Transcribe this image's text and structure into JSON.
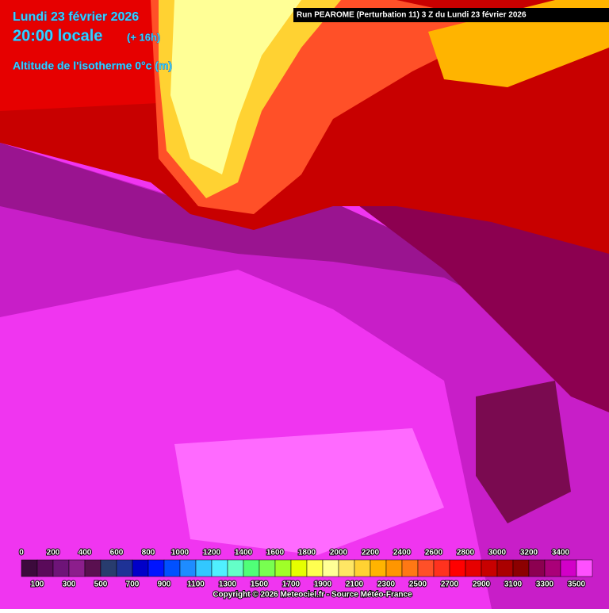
{
  "header": {
    "date": "Lundi 23 février 2026",
    "time": "20:00 locale",
    "lead": "(+ 16h)",
    "field": "Altitude de l'isotherme 0°c (m)",
    "run": "Run PEAROME (Perturbation 11) 3 Z du Lundi 23 février 2026"
  },
  "legend": {
    "values": [
      0,
      100,
      200,
      300,
      400,
      500,
      600,
      700,
      800,
      900,
      1000,
      1100,
      1200,
      1300,
      1400,
      1500,
      1600,
      1700,
      1800,
      1900,
      2000,
      2100,
      2200,
      2300,
      2400,
      2500,
      2600,
      2700,
      2800,
      2900,
      3000,
      3100,
      3200,
      3300,
      3400,
      3500
    ],
    "colors": [
      "#3c0a3c",
      "#5a0a5a",
      "#6e1478",
      "#8c1e8c",
      "#5a1050",
      "#283c6e",
      "#1e3296",
      "#0000c8",
      "#0014ff",
      "#0050ff",
      "#1e8cff",
      "#32c8ff",
      "#50f0ff",
      "#64ffc8",
      "#50ff78",
      "#78ff50",
      "#a0ff28",
      "#e6ff00",
      "#ffff50",
      "#ffff96",
      "#ffe664",
      "#ffd232",
      "#ffb400",
      "#ff9600",
      "#ff7814",
      "#ff5028",
      "#ff321e",
      "#ff0000",
      "#e60000",
      "#c80000",
      "#aa0000",
      "#8c0000",
      "#8c0050",
      "#aa0078",
      "#d200c8",
      "#ff50ff"
    ]
  },
  "footer": {
    "copyright": "Copyright © 2026 Meteociel.fr - Source Météo-France"
  }
}
